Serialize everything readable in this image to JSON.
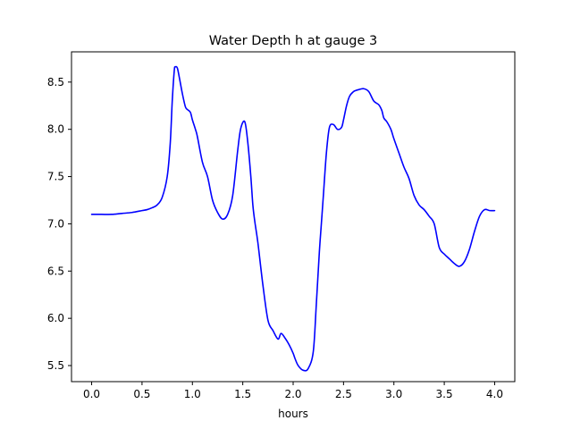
{
  "chart_data": {
    "type": "line",
    "title": "Water Depth h at gauge 3",
    "xlabel": "hours",
    "ylabel": "",
    "xlim": [
      -0.2,
      4.2
    ],
    "ylim": [
      5.33,
      8.82
    ],
    "xticks": [
      0.0,
      0.5,
      1.0,
      1.5,
      2.0,
      2.5,
      3.0,
      3.5,
      4.0
    ],
    "xtick_labels": [
      "0.0",
      "0.5",
      "1.0",
      "1.5",
      "2.0",
      "2.5",
      "3.0",
      "3.5",
      "4.0"
    ],
    "yticks": [
      5.5,
      6.0,
      6.5,
      7.0,
      7.5,
      8.0,
      8.5
    ],
    "ytick_labels": [
      "5.5",
      "6.0",
      "6.5",
      "7.0",
      "7.5",
      "8.0",
      "8.5"
    ],
    "grid": false,
    "legend": "none",
    "series": [
      {
        "color": "#0000ff",
        "x": [
          0.0,
          0.1,
          0.2,
          0.3,
          0.4,
          0.5,
          0.55,
          0.6,
          0.65,
          0.7,
          0.75,
          0.78,
          0.8,
          0.82,
          0.83,
          0.85,
          0.87,
          0.9,
          0.93,
          0.95,
          0.98,
          1.0,
          1.03,
          1.05,
          1.1,
          1.15,
          1.2,
          1.25,
          1.3,
          1.35,
          1.4,
          1.45,
          1.48,
          1.52,
          1.55,
          1.58,
          1.6,
          1.62,
          1.65,
          1.7,
          1.75,
          1.8,
          1.85,
          1.88,
          1.92,
          1.96,
          2.0,
          2.02,
          2.05,
          2.1,
          2.15,
          2.2,
          2.23,
          2.26,
          2.28,
          2.3,
          2.33,
          2.36,
          2.4,
          2.44,
          2.48,
          2.5,
          2.53,
          2.56,
          2.6,
          2.62,
          2.65,
          2.7,
          2.75,
          2.8,
          2.85,
          2.88,
          2.9,
          2.93,
          2.97,
          3.0,
          3.05,
          3.1,
          3.15,
          3.2,
          3.25,
          3.3,
          3.35,
          3.4,
          3.45,
          3.5,
          3.55,
          3.6,
          3.65,
          3.7,
          3.75,
          3.8,
          3.85,
          3.9,
          3.95,
          4.0
        ],
        "y": [
          7.1,
          7.1,
          7.1,
          7.11,
          7.12,
          7.14,
          7.15,
          7.17,
          7.2,
          7.28,
          7.5,
          7.85,
          8.3,
          8.62,
          8.66,
          8.65,
          8.55,
          8.38,
          8.24,
          8.21,
          8.18,
          8.1,
          8.0,
          7.92,
          7.65,
          7.5,
          7.25,
          7.12,
          7.05,
          7.1,
          7.3,
          7.78,
          8.01,
          8.08,
          7.86,
          7.5,
          7.2,
          7.02,
          6.8,
          6.35,
          5.98,
          5.87,
          5.78,
          5.84,
          5.79,
          5.72,
          5.63,
          5.57,
          5.5,
          5.45,
          5.47,
          5.65,
          6.15,
          6.7,
          7.0,
          7.3,
          7.75,
          8.02,
          8.05,
          8.0,
          8.02,
          8.1,
          8.25,
          8.35,
          8.4,
          8.41,
          8.42,
          8.43,
          8.4,
          8.3,
          8.26,
          8.2,
          8.12,
          8.08,
          8.0,
          7.9,
          7.75,
          7.6,
          7.48,
          7.3,
          7.2,
          7.15,
          7.08,
          7.0,
          6.75,
          6.68,
          6.63,
          6.58,
          6.55,
          6.6,
          6.73,
          6.92,
          7.08,
          7.15,
          7.14,
          7.14
        ]
      }
    ]
  }
}
